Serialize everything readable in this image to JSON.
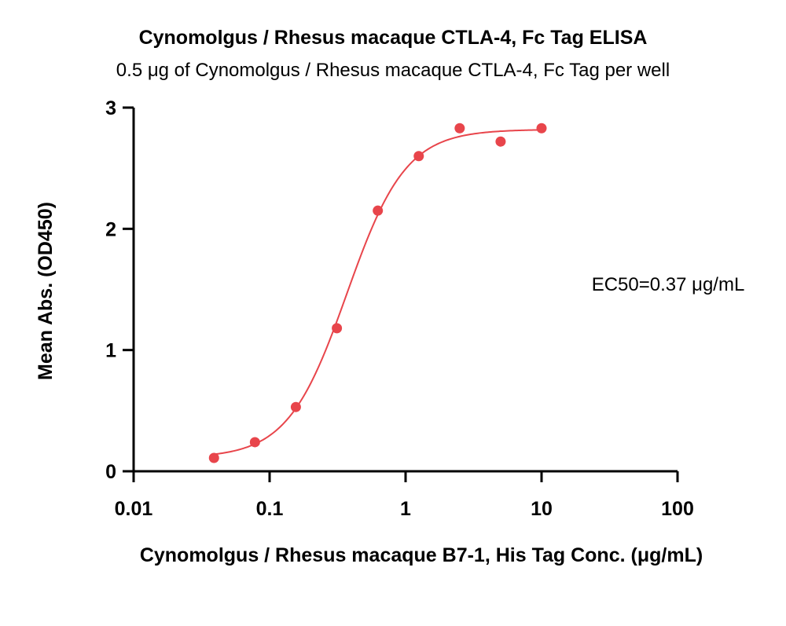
{
  "chart_data": {
    "type": "scatter",
    "title": "Cynomolgus / Rhesus macaque CTLA-4, Fc Tag ELISA",
    "subtitle": "0.5 μg of Cynomolgus / Rhesus macaque CTLA-4, Fc Tag per well",
    "xlabel": "Cynomolgus / Rhesus macaque B7-1, His Tag Conc. (μg/mL)",
    "ylabel": "Mean Abs. (OD450)",
    "x_scale": "log",
    "xlim": [
      0.01,
      100
    ],
    "ylim": [
      0,
      3
    ],
    "x_ticks": [
      0.01,
      0.1,
      1,
      10,
      100
    ],
    "x_tick_labels": [
      "0.01",
      "0.1",
      "1",
      "10",
      "100"
    ],
    "y_ticks": [
      0,
      1,
      2,
      3
    ],
    "y_tick_labels": [
      "0",
      "1",
      "2",
      "3"
    ],
    "grid": false,
    "series": [
      {
        "color": "#e8454b",
        "x": [
          0.039,
          0.078,
          0.156,
          0.3125,
          0.625,
          1.25,
          2.5,
          5,
          10
        ],
        "y": [
          0.11,
          0.24,
          0.53,
          1.18,
          2.15,
          2.6,
          2.83,
          2.72,
          2.83
        ],
        "fit": {
          "model": "4PL",
          "bottom": 0.11,
          "top": 2.82,
          "ec50": 0.37,
          "hill": 2.0
        }
      }
    ],
    "annotations": [
      "EC50=0.37 μg/mL"
    ]
  }
}
